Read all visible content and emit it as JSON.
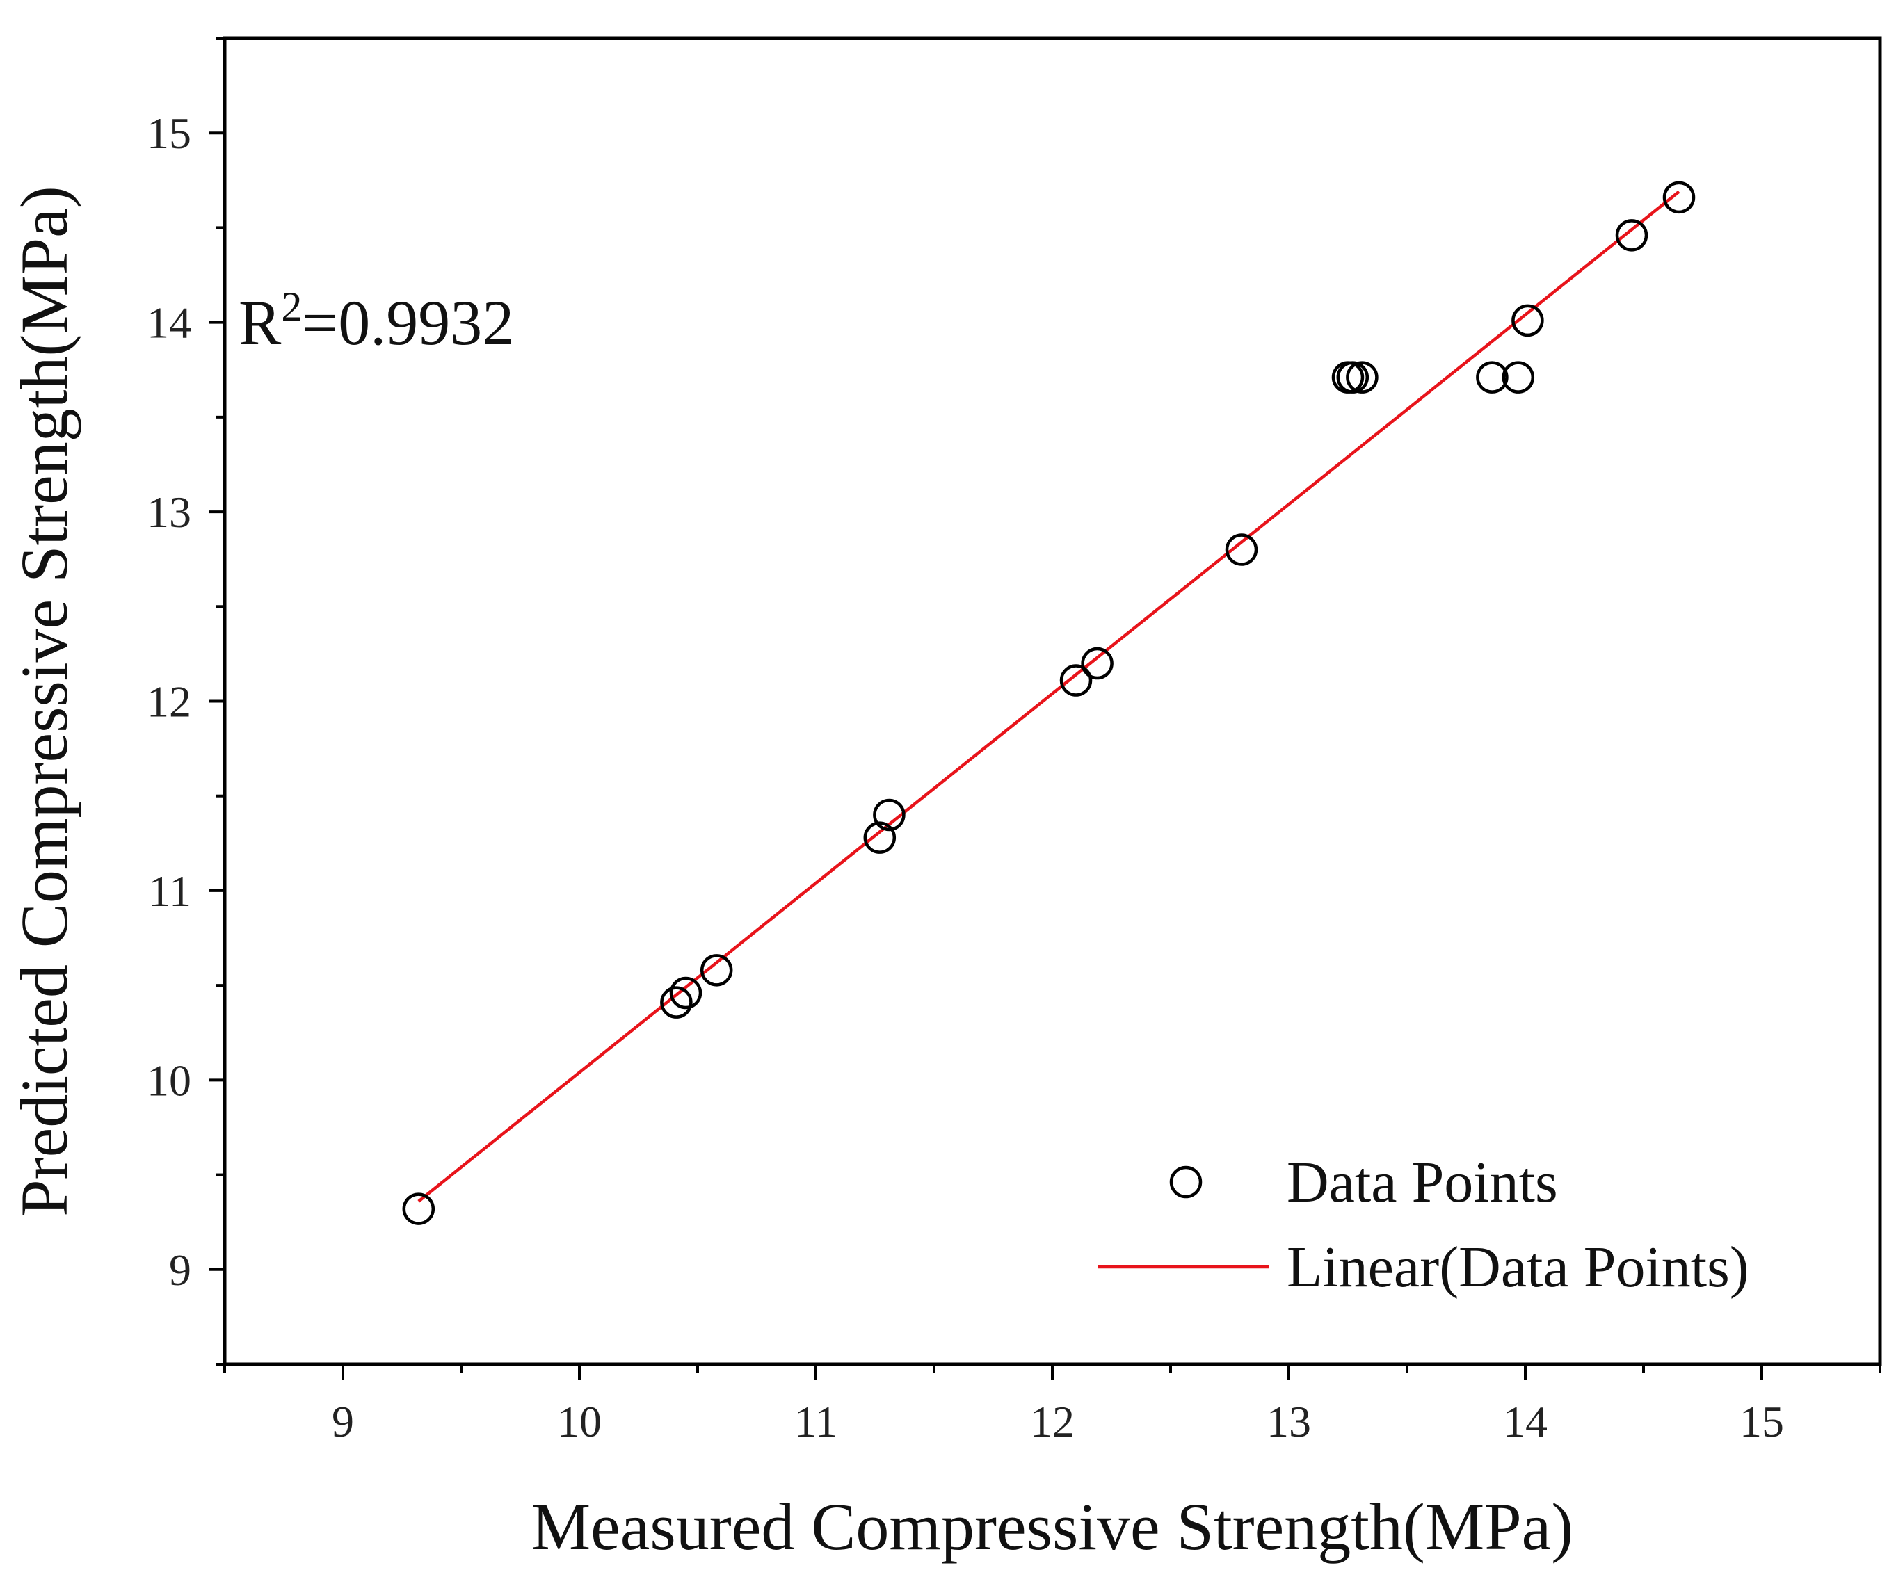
{
  "chart_data": {
    "type": "scatter",
    "title": "",
    "xlabel": "Measured Compressive Strength(MPa)",
    "ylabel": "Predicted Compressive Strength(MPa)",
    "xlim": [
      8.5,
      15.5
    ],
    "ylim": [
      8.5,
      15.5
    ],
    "x_major_ticks": [
      9,
      10,
      11,
      12,
      13,
      14,
      15
    ],
    "y_major_ticks": [
      9,
      10,
      11,
      12,
      13,
      14,
      15
    ],
    "x_tick_labels": [
      "9",
      "10",
      "11",
      "12",
      "13",
      "14",
      "15"
    ],
    "y_tick_labels": [
      "9",
      "10",
      "11",
      "12",
      "13",
      "14",
      "15"
    ],
    "minor_tick_step": 0.5,
    "grid": false,
    "legend_position": "bottom-right",
    "series": [
      {
        "name": "Data Points",
        "kind": "scatter",
        "marker": "open-circle",
        "color": "#000000",
        "x": [
          9.32,
          10.41,
          10.45,
          10.58,
          11.27,
          11.31,
          12.1,
          12.19,
          12.8,
          13.25,
          13.27,
          13.31,
          13.86,
          13.97,
          14.01,
          14.45,
          14.65
        ],
        "y": [
          9.32,
          10.41,
          10.46,
          10.58,
          11.28,
          11.4,
          12.11,
          12.2,
          12.8,
          13.71,
          13.71,
          13.71,
          13.71,
          13.71,
          14.01,
          14.46,
          14.66
        ]
      },
      {
        "name": "Linear(Data Points)",
        "kind": "line",
        "color": "#e8141b",
        "x": [
          9.32,
          14.65
        ],
        "y": [
          9.36,
          14.69
        ]
      }
    ],
    "annotations": [
      {
        "text_base": "R",
        "text_sup": "2",
        "text_rest": "=0.9932",
        "x": 9.0,
        "y": 13.9
      }
    ]
  }
}
